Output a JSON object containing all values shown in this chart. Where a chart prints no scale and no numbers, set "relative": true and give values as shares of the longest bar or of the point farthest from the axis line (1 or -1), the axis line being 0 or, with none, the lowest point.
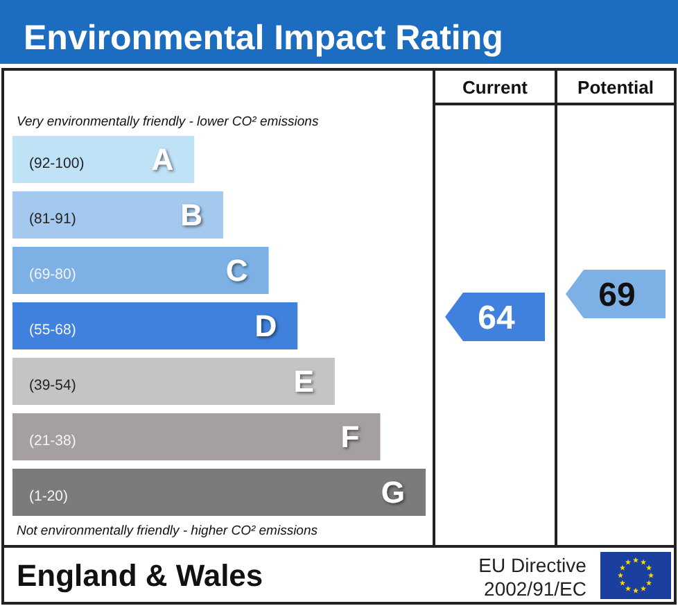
{
  "chart_data": {
    "type": "bar",
    "orientation": "horizontal",
    "relative": true,
    "title": "Environmental Impact Rating",
    "categories": [
      "A",
      "B",
      "C",
      "D",
      "E",
      "F",
      "G"
    ],
    "values": [
      0.44,
      0.51,
      0.62,
      0.69,
      0.78,
      0.89,
      1
    ],
    "colors": [
      "#bfe2f7",
      "#a4c8ee",
      "#7db1e6",
      "#3f81dc",
      "#c4c4c6",
      "#a59fa3",
      "#7b7b7b"
    ],
    "annotations": [
      "Very environmentally friendly - lower CO² emissions",
      "Not environmentally friendly - higher CO² emissions",
      "Current",
      "Potential",
      "64",
      "69",
      "England & Wales",
      "EU Directive 2002/91/EC",
      "(92-100)",
      "(81-91)",
      "(69-80)",
      "(55-68)",
      "(39-54)",
      "(21-38)",
      "(1-20)"
    ]
  }
}
